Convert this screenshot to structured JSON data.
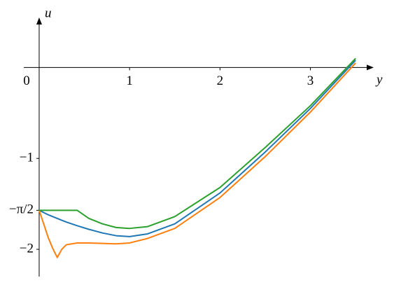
{
  "chart_data": {
    "type": "line",
    "x_label": "y",
    "y_label": "u",
    "x": [
      0,
      0.05,
      0.1,
      0.15,
      0.2,
      0.25,
      0.3,
      0.42,
      0.55,
      0.7,
      0.85,
      1.0,
      1.2,
      1.5,
      2.0,
      2.5,
      3.0,
      3.5
    ],
    "series": [
      {
        "color": "#1f77b4",
        "values": [
          -1.571,
          -1.595,
          -1.62,
          -1.64,
          -1.66,
          -1.68,
          -1.7,
          -1.74,
          -1.78,
          -1.82,
          -1.85,
          -1.86,
          -1.83,
          -1.72,
          -1.38,
          -0.93,
          -0.45,
          0.08
        ]
      },
      {
        "color": "#ff7f0e",
        "values": [
          -1.571,
          -1.72,
          -1.87,
          -1.99,
          -2.09,
          -2.0,
          -1.95,
          -1.93,
          -1.93,
          -1.935,
          -1.94,
          -1.93,
          -1.88,
          -1.77,
          -1.43,
          -0.98,
          -0.49,
          0.05
        ]
      },
      {
        "color": "#2ca02c",
        "values": [
          -1.571,
          -1.571,
          -1.571,
          -1.571,
          -1.571,
          -1.571,
          -1.571,
          -1.571,
          -1.66,
          -1.72,
          -1.76,
          -1.77,
          -1.75,
          -1.64,
          -1.32,
          -0.88,
          -0.42,
          0.1
        ]
      }
    ],
    "xlim": [
      -0.17,
      3.7
    ],
    "ylim": [
      -2.3,
      0.55
    ],
    "xticks": [
      0,
      1,
      2,
      3
    ],
    "yticks": [
      {
        "value": -1,
        "label": "−1"
      },
      {
        "value": -1.5708,
        "label": "−π/2"
      },
      {
        "value": -2,
        "label": "−2"
      }
    ],
    "grid": false
  }
}
